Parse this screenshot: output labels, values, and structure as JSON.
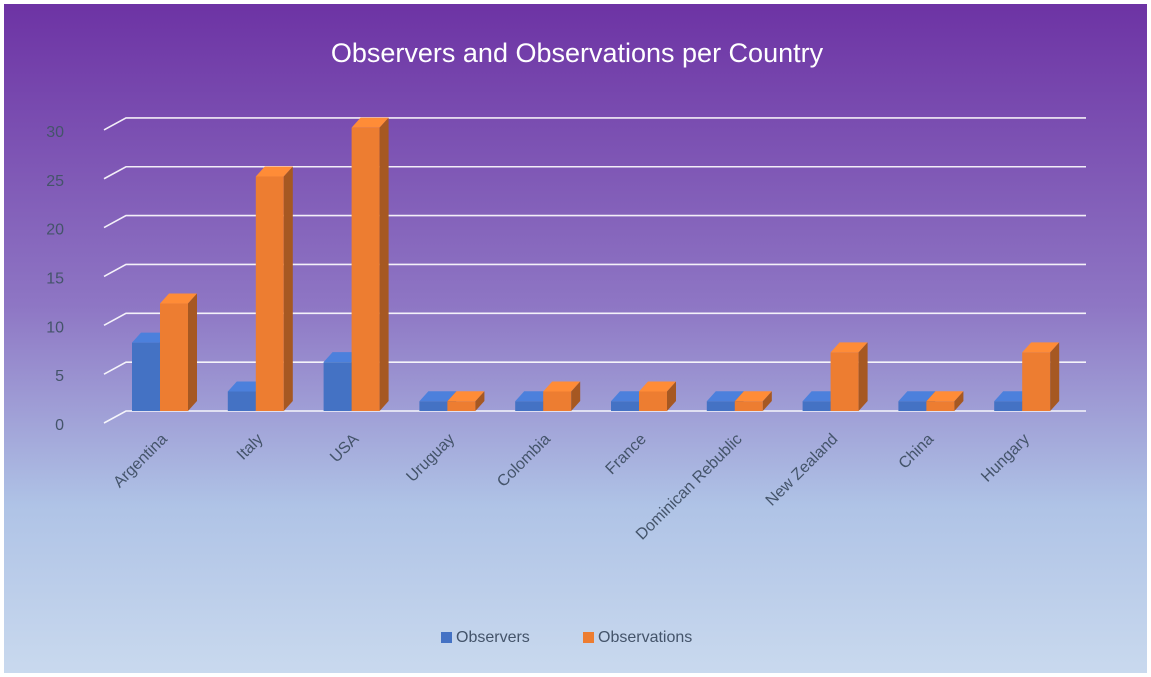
{
  "chart_data": {
    "type": "bar",
    "title": "Observers and Observations per Country",
    "categories": [
      "Argentina",
      "Italy",
      "USA",
      "Uruguay",
      "Colombia",
      "France",
      "Dominican Rebublic",
      "New Zealand",
      "China",
      "Hungary"
    ],
    "series": [
      {
        "name": "Observers",
        "values": [
          7,
          2,
          5,
          1,
          1,
          1,
          1,
          1,
          1,
          1
        ]
      },
      {
        "name": "Observations",
        "values": [
          11,
          24,
          29,
          1,
          2,
          2,
          1,
          6,
          1,
          6
        ]
      }
    ],
    "ylim": [
      0,
      30
    ],
    "yticks": [
      0,
      5,
      10,
      15,
      20,
      25,
      30
    ],
    "grid": true,
    "legend_position": "bottom",
    "style_3d": true,
    "colors": {
      "Observers": "#4472C4",
      "Observations": "#ED7D31",
      "background_top": "#6F35A5",
      "background_bottom": "#C9D9EE",
      "gridline": "#FFFFFF",
      "title": "#FFFFFF",
      "tick_label": "#44546A"
    }
  }
}
